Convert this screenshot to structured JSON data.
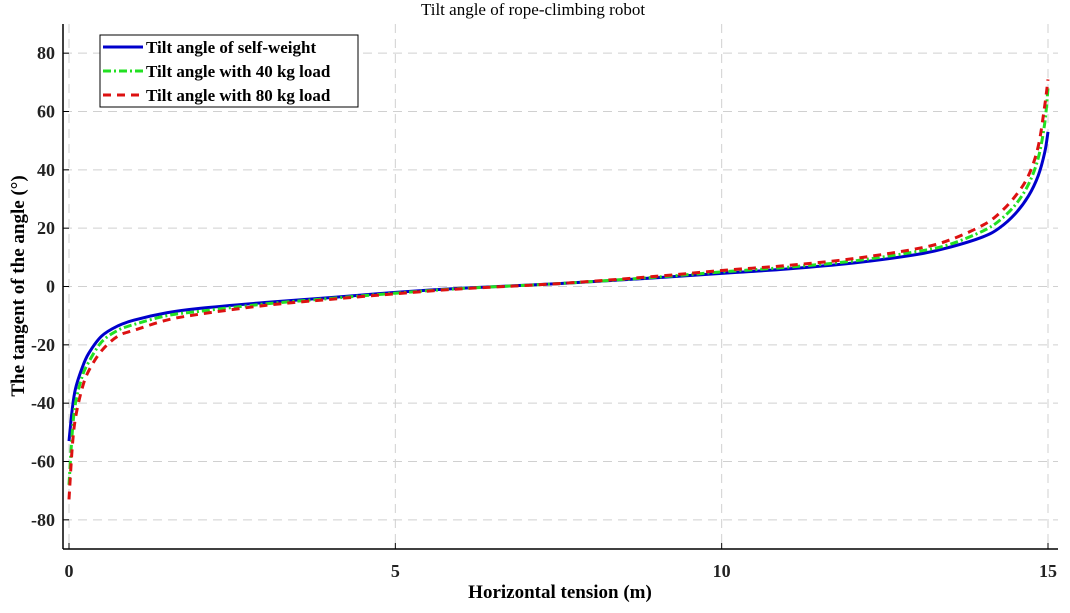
{
  "chart_data": {
    "type": "line",
    "title": "Tilt angle of rope-climbing robot",
    "xlabel": "Horizontal tension (m)",
    "ylabel": "The tangent of the angle (°)",
    "xlim": [
      -0.1,
      15.15
    ],
    "ylim": [
      -90,
      90
    ],
    "xticks": [
      0,
      5,
      10,
      15
    ],
    "yticks": [
      -80,
      -60,
      -40,
      -20,
      0,
      20,
      40,
      60,
      80
    ],
    "grid": true,
    "legend_position": "top-left",
    "x": [
      0,
      0.05,
      0.1,
      0.2,
      0.3,
      0.5,
      0.75,
      1,
      1.5,
      2,
      3,
      4,
      5,
      6,
      7.5,
      9,
      10,
      11,
      12,
      13,
      13.5,
      14,
      14.25,
      14.5,
      14.7,
      14.85,
      14.95,
      15
    ],
    "series": [
      {
        "name": "Tilt angle of self-weight",
        "color": "#0000cc",
        "style": "solid",
        "values": [
          -53,
          -42,
          -35,
          -28,
          -23,
          -17,
          -13.5,
          -11.5,
          -9,
          -7.5,
          -5.5,
          -3.8,
          -2,
          -0.6,
          1,
          3,
          4.5,
          6,
          8,
          11,
          13.5,
          17,
          20,
          25,
          31,
          38,
          46,
          53
        ]
      },
      {
        "name": "Tilt angle with 40 kg load",
        "color": "#22e022",
        "style": "dashdot",
        "values": [
          -68,
          -50,
          -40,
          -31,
          -26,
          -19,
          -15,
          -13,
          -10,
          -8.5,
          -6,
          -4.1,
          -2.3,
          -0.7,
          1,
          3.2,
          5,
          6.6,
          8.7,
          12,
          14.5,
          19,
          22.5,
          28,
          35,
          44,
          56,
          68
        ]
      },
      {
        "name": "Tilt angle with 80 kg load",
        "color": "#dd1111",
        "style": "dashed",
        "values": [
          -73,
          -55,
          -45,
          -35,
          -29,
          -22,
          -17,
          -15,
          -11.5,
          -9.5,
          -6.5,
          -4.4,
          -2.5,
          -0.8,
          1,
          3.5,
          5.5,
          7.2,
          9.5,
          13,
          16,
          21,
          25,
          31,
          38,
          48,
          62,
          71
        ]
      }
    ]
  }
}
